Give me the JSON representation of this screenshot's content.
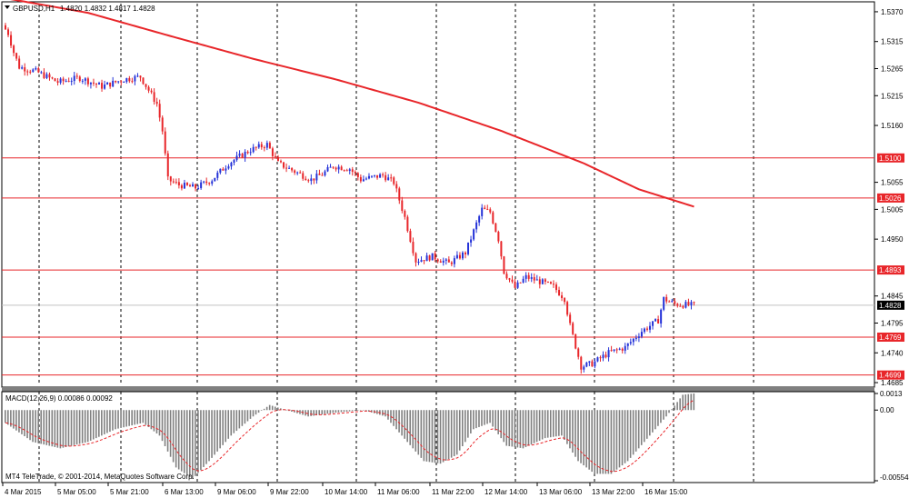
{
  "header": {
    "symbol": "GBPUSD,H1",
    "ohlc": "1.4820 1.4832 1.4817 1.4828"
  },
  "macd_header": "MACD(12,26,9) 0.00086 0.00092",
  "copyright": "MT4 TeleTrade, © 2001-2014, MetaQuotes Software Corp.",
  "colors": {
    "bull": "#2432d8",
    "bear": "#e8262a",
    "ma": "#e8262a",
    "level": "#e8262a",
    "grid": "#000000",
    "macd_hist": "#808080",
    "macd_signal": "#e8262a",
    "current": "#000000"
  },
  "chart_data": {
    "type": "candlestick",
    "price_axis_ticks": [
      "1.5370",
      "1.5315",
      "1.5265",
      "1.5215",
      "1.5160",
      "1.5055",
      "1.5005",
      "1.4950",
      "1.4845",
      "1.4795",
      "1.4740",
      "1.4685"
    ],
    "price_range": [
      1.468,
      1.5385
    ],
    "time_labels": [
      "4 Mar 2015",
      "5 Mar 05:00",
      "5 Mar 21:00",
      "6 Mar 13:00",
      "9 Mar 06:00",
      "9 Mar 22:00",
      "10 Mar 14:00",
      "11 Mar 06:00",
      "11 Mar 22:00",
      "12 Mar 14:00",
      "13 Mar 06:00",
      "13 Mar 22:00",
      "16 Mar 15:00"
    ],
    "levels": [
      {
        "label": "1.5100",
        "value": 1.51
      },
      {
        "label": "1.5026",
        "value": 1.5026
      },
      {
        "label": "1.4893",
        "value": 1.4893
      },
      {
        "label": "1.4769",
        "value": 1.4769
      },
      {
        "label": "1.4699",
        "value": 1.4699
      }
    ],
    "current_price": {
      "label": "1.4828",
      "value": 1.4828
    },
    "moving_average": [
      [
        0,
        1.5395
      ],
      [
        30,
        1.5368
      ],
      [
        60,
        1.5325
      ],
      [
        90,
        1.5283
      ],
      [
        120,
        1.5245
      ],
      [
        150,
        1.5202
      ],
      [
        180,
        1.515
      ],
      [
        210,
        1.509
      ],
      [
        230,
        1.5042
      ],
      [
        250,
        1.501
      ]
    ],
    "anchors": [
      [
        0,
        1.5345
      ],
      [
        2,
        1.533
      ],
      [
        4,
        1.5295
      ],
      [
        6,
        1.5268
      ],
      [
        12,
        1.526
      ],
      [
        20,
        1.524
      ],
      [
        28,
        1.5248
      ],
      [
        36,
        1.5232
      ],
      [
        44,
        1.5245
      ],
      [
        50,
        1.525
      ],
      [
        56,
        1.52
      ],
      [
        58,
        1.515
      ],
      [
        60,
        1.506
      ],
      [
        64,
        1.505
      ],
      [
        70,
        1.5045
      ],
      [
        76,
        1.506
      ],
      [
        82,
        1.509
      ],
      [
        90,
        1.5115
      ],
      [
        96,
        1.5125
      ],
      [
        100,
        1.509
      ],
      [
        106,
        1.5075
      ],
      [
        112,
        1.506
      ],
      [
        116,
        1.507
      ],
      [
        120,
        1.5085
      ],
      [
        126,
        1.508
      ],
      [
        130,
        1.506
      ],
      [
        138,
        1.5068
      ],
      [
        142,
        1.5055
      ],
      [
        146,
        1.499
      ],
      [
        150,
        1.491
      ],
      [
        156,
        1.4918
      ],
      [
        162,
        1.4905
      ],
      [
        168,
        1.4925
      ],
      [
        174,
        1.5005
      ],
      [
        177,
        1.5
      ],
      [
        180,
        1.495
      ],
      [
        182,
        1.489
      ],
      [
        186,
        1.486
      ],
      [
        190,
        1.488
      ],
      [
        196,
        1.487
      ],
      [
        200,
        1.4862
      ],
      [
        204,
        1.484
      ],
      [
        206,
        1.479
      ],
      [
        210,
        1.4715
      ],
      [
        214,
        1.472
      ],
      [
        220,
        1.474
      ],
      [
        226,
        1.475
      ],
      [
        232,
        1.478
      ],
      [
        238,
        1.48
      ],
      [
        240,
        1.484
      ],
      [
        244,
        1.483
      ],
      [
        250,
        1.4828
      ]
    ],
    "macd_range": [
      -0.00554,
      0.0013
    ],
    "macd_axis_ticks": [
      "0.0013",
      "0.00",
      "-0.00554"
    ],
    "macd_anchors": [
      [
        0,
        -0.001
      ],
      [
        10,
        -0.0025
      ],
      [
        20,
        -0.003
      ],
      [
        30,
        -0.0025
      ],
      [
        40,
        -0.0015
      ],
      [
        50,
        -0.001
      ],
      [
        56,
        -0.002
      ],
      [
        62,
        -0.0045
      ],
      [
        68,
        -0.0054
      ],
      [
        74,
        -0.004
      ],
      [
        82,
        -0.002
      ],
      [
        90,
        -0.0005
      ],
      [
        96,
        0.0004
      ],
      [
        102,
        0.0
      ],
      [
        110,
        -0.0005
      ],
      [
        120,
        -0.0002
      ],
      [
        130,
        0.0
      ],
      [
        138,
        -0.0005
      ],
      [
        146,
        -0.0025
      ],
      [
        152,
        -0.004
      ],
      [
        158,
        -0.0042
      ],
      [
        164,
        -0.0035
      ],
      [
        170,
        -0.0015
      ],
      [
        176,
        -0.001
      ],
      [
        182,
        -0.0028
      ],
      [
        188,
        -0.003
      ],
      [
        196,
        -0.0022
      ],
      [
        202,
        -0.002
      ],
      [
        208,
        -0.004
      ],
      [
        214,
        -0.005
      ],
      [
        220,
        -0.005
      ],
      [
        226,
        -0.004
      ],
      [
        232,
        -0.0025
      ],
      [
        240,
        -0.0005
      ],
      [
        246,
        0.0012
      ],
      [
        250,
        0.0013
      ]
    ]
  }
}
